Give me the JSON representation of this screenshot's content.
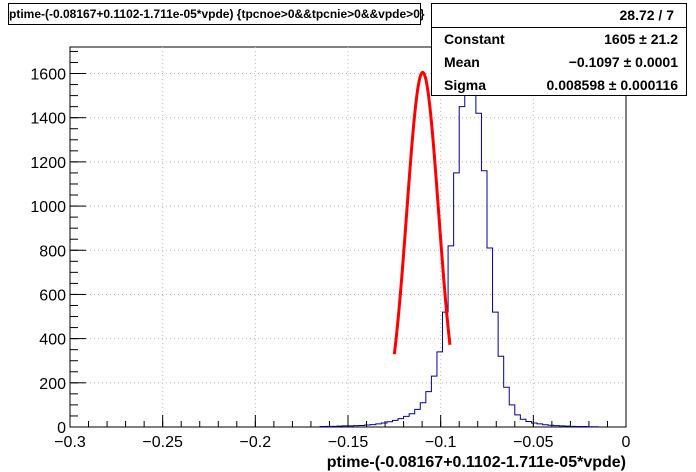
{
  "chart_data": {
    "type": "histogram",
    "title": "ptime-(-0.08167+0.1102-1.711e-05*vpde) {tpcnoe>0&&tpcnie>0&&vpde>0}",
    "xlabel": "ptime-(-0.08167+0.1102-1.711e-05*vpde)",
    "ylabel": "",
    "xlim": [
      -0.3,
      0
    ],
    "ylim": [
      0,
      1720
    ],
    "xticks": [
      -0.3,
      -0.25,
      -0.2,
      -0.15,
      -0.1,
      -0.05,
      0
    ],
    "xtick_labels": [
      "−0.3",
      "−0.25",
      "−0.2",
      "−0.15",
      "−0.1",
      "−0.05",
      "0"
    ],
    "yticks": [
      0,
      200,
      400,
      600,
      800,
      1000,
      1200,
      1400,
      1600
    ],
    "grid": true,
    "bin_width": 0.003,
    "histogram": {
      "bin_start": -0.165,
      "counts": [
        2,
        3,
        3,
        4,
        5,
        5,
        6,
        7,
        9,
        11,
        14,
        18,
        24,
        30,
        38,
        48,
        60,
        80,
        110,
        160,
        230,
        340,
        520,
        820,
        1150,
        1450,
        1640,
        1570,
        1420,
        1160,
        810,
        520,
        320,
        180,
        100,
        55,
        35,
        25,
        18,
        14,
        10,
        8,
        6,
        5,
        4,
        3,
        2,
        2,
        1,
        1
      ],
      "color": "#000099"
    },
    "fit": {
      "function": "gaus",
      "constant": 1605,
      "mean": -0.1097,
      "sigma": 0.008598,
      "x_range": [
        -0.125,
        -0.095
      ],
      "color": "#ff0000"
    },
    "stats": {
      "header_value": "28.72 / 7",
      "rows": [
        {
          "label": "Constant",
          "value": "1605 ± 21.2"
        },
        {
          "label": "Mean",
          "value": "−0.1097 ± 0.0001"
        },
        {
          "label": "Sigma",
          "value": "0.008598 ± 0.000116"
        }
      ]
    }
  }
}
